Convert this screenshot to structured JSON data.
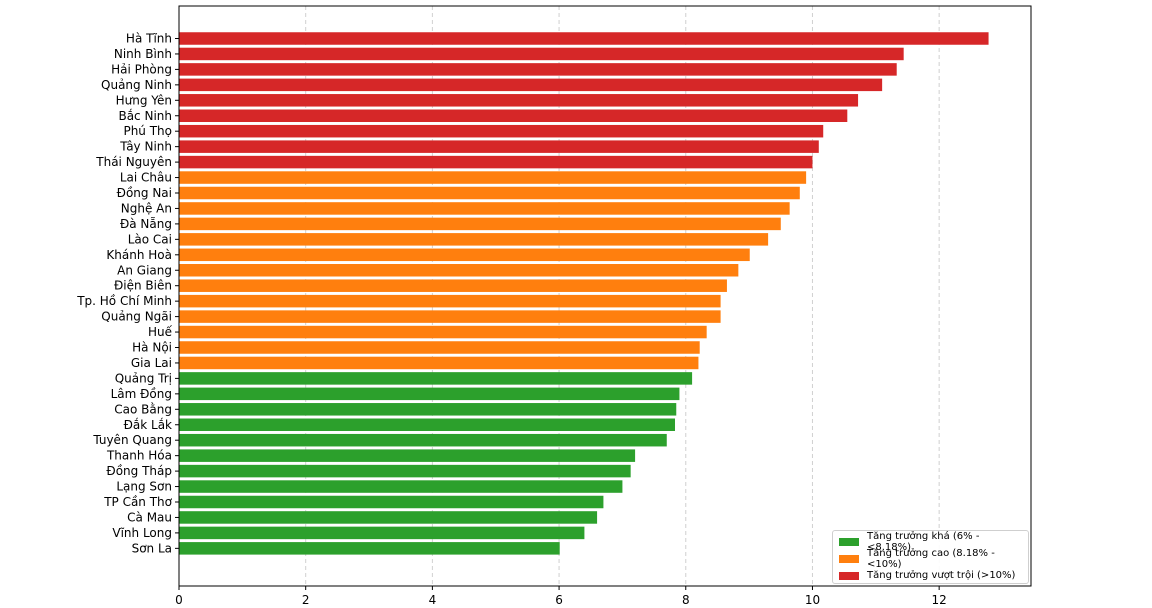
{
  "chart_data": {
    "type": "bar",
    "orientation": "horizontal",
    "title": "",
    "xlabel": "",
    "ylabel": "",
    "xlim": [
      0,
      13.45
    ],
    "xticks": [
      0,
      2,
      4,
      6,
      8,
      10,
      12
    ],
    "grid": "x-dashed",
    "legend_placement": "bottom-right",
    "categories": [
      "Hà Tĩnh",
      "Ninh Bình",
      "Hải Phòng",
      "Quảng Ninh",
      "Hưng Yên",
      "Bắc Ninh",
      "Phú Thọ",
      "Tây Ninh",
      "Thái Nguyên",
      "Lai Châu",
      "Đồng Nai",
      "Nghệ An",
      "Đà Nẵng",
      "Lào Cai",
      "Khánh Hoà",
      "An Giang",
      "Điện Biên",
      "Tp. Hồ Chí Minh",
      "Quảng Ngãi",
      "Huế",
      "Hà Nội",
      "Gia Lai",
      "Quảng Trị",
      "Lâm Đồng",
      "Cao Bằng",
      "Đắk Lắk",
      "Tuyên Quang",
      "Thanh Hóa",
      "Đồng Tháp",
      "Lạng Sơn",
      "TP Cần Thơ",
      "Cà Mau",
      "Vĩnh Long",
      "Sơn La"
    ],
    "values": [
      12.78,
      11.44,
      11.33,
      11.1,
      10.72,
      10.55,
      10.17,
      10.1,
      10.0,
      9.9,
      9.8,
      9.64,
      9.5,
      9.3,
      9.01,
      8.83,
      8.65,
      8.55,
      8.55,
      8.33,
      8.22,
      8.2,
      8.1,
      7.9,
      7.85,
      7.83,
      7.7,
      7.2,
      7.13,
      7.0,
      6.7,
      6.6,
      6.4,
      6.01
    ],
    "groups": [
      "outstanding",
      "outstanding",
      "outstanding",
      "outstanding",
      "outstanding",
      "outstanding",
      "outstanding",
      "outstanding",
      "outstanding",
      "high",
      "high",
      "high",
      "high",
      "high",
      "high",
      "high",
      "high",
      "high",
      "high",
      "high",
      "high",
      "high",
      "good",
      "good",
      "good",
      "good",
      "good",
      "good",
      "good",
      "good",
      "good",
      "good",
      "good",
      "good"
    ],
    "legend": [
      {
        "key": "good",
        "label": "Tăng trưởng khá (6% - <8.18%)",
        "color": "#2ca02c"
      },
      {
        "key": "high",
        "label": "Tăng trưởng cao (8.18% - <10%)",
        "color": "#ff7f0e"
      },
      {
        "key": "outstanding",
        "label": "Tăng trưởng vượt trội (>10%)",
        "color": "#d62728"
      }
    ]
  }
}
